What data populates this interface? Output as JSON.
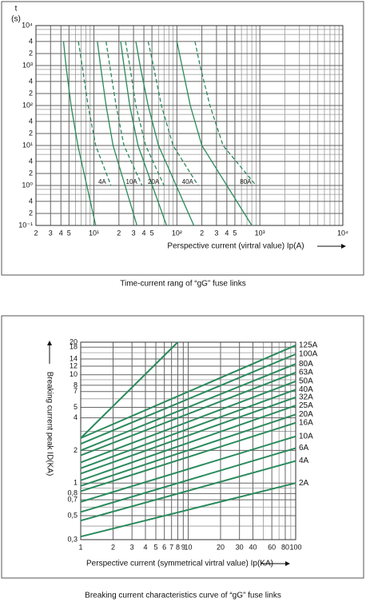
{
  "chart_data": [
    {
      "type": "line",
      "log_x": true,
      "log_y": true,
      "color": "#2a8a5c",
      "grid": true,
      "title": "Time-current rang of “gG” fuse links",
      "x_label": "Perspective current (virtral value) Ip(A)",
      "y_label": "t",
      "y_unit": "(s)",
      "xlim": [
        2,
        10000
      ],
      "ylim": [
        0.1,
        10000
      ],
      "xticks": [
        {
          "value": 2,
          "label": "2"
        },
        3,
        4,
        5,
        {
          "value": 10,
          "label": "10¹"
        },
        {
          "value": 20,
          "label": "2"
        },
        {
          "value": 30,
          "label": "3"
        },
        {
          "value": 40,
          "label": "4"
        },
        {
          "value": 50,
          "label": "5"
        },
        {
          "value": 100,
          "label": "10²"
        },
        {
          "value": 200,
          "label": "2"
        },
        {
          "value": 300,
          "label": "3"
        },
        {
          "value": 400,
          "label": "4"
        },
        {
          "value": 500,
          "label": "5"
        },
        {
          "value": 1000,
          "label": "10³"
        },
        {
          "value": 10000,
          "label": "10⁴"
        }
      ],
      "xminor": [
        6,
        7,
        8,
        9,
        60,
        70,
        80,
        90,
        600,
        700,
        800,
        900,
        2000,
        3000,
        4000,
        5000,
        6000,
        7000,
        8000,
        9000
      ],
      "yticks": [
        {
          "value": 10000,
          "label": "10⁴"
        },
        {
          "value": 4000,
          "label": "4"
        },
        {
          "value": 2000,
          "label": "2"
        },
        {
          "value": 1000,
          "label": "10³"
        },
        {
          "value": 400,
          "label": "4"
        },
        {
          "value": 200,
          "label": "2"
        },
        {
          "value": 100,
          "label": "10²"
        },
        {
          "value": 40,
          "label": "4"
        },
        {
          "value": 20,
          "label": "2"
        },
        {
          "value": 10,
          "label": "10¹"
        },
        4,
        2,
        {
          "value": 1,
          "label": "10⁰"
        },
        {
          "value": 0.4,
          "label": "4"
        },
        {
          "value": 0.2,
          "label": "2"
        },
        {
          "value": 0.1,
          "label": "10⁻¹"
        }
      ],
      "yminor": [
        6000,
        8000,
        600,
        800,
        60,
        80,
        6,
        8,
        0.6,
        0.8
      ],
      "series": [
        {
          "style": "solid",
          "x": [
            4.3,
            4.6,
            5.3,
            6.4,
            10.5
          ],
          "values": [
            4000,
            1000,
            100,
            10,
            0.1
          ]
        },
        {
          "name": "4A",
          "style": "dashed",
          "x": [
            6.5,
            7.2,
            8.5,
            10.5,
            16
          ],
          "values": [
            4000,
            1000,
            100,
            10,
            1
          ]
        },
        {
          "style": "solid",
          "x": [
            11,
            12,
            14,
            17,
            33
          ],
          "values": [
            4000,
            1000,
            100,
            10,
            0.1
          ]
        },
        {
          "name": "10A",
          "style": "dashed",
          "x": [
            14,
            15.5,
            18.5,
            23,
            38
          ],
          "values": [
            4000,
            1000,
            100,
            10,
            1
          ]
        },
        {
          "style": "solid",
          "x": [
            21,
            23,
            27,
            34,
            75
          ],
          "values": [
            4000,
            1000,
            100,
            10,
            0.1
          ]
        },
        {
          "name": "20A",
          "style": "dashed",
          "x": [
            24,
            27,
            32,
            42,
            70
          ],
          "values": [
            4000,
            1000,
            100,
            10,
            1
          ]
        },
        {
          "style": "solid",
          "x": [
            32,
            36,
            45,
            60,
            160
          ],
          "values": [
            4000,
            1000,
            100,
            10,
            0.1
          ]
        },
        {
          "name": "40A",
          "style": "dashed",
          "x": [
            45,
            52,
            65,
            90,
            180
          ],
          "values": [
            4000,
            1000,
            100,
            10,
            1
          ]
        },
        {
          "style": "solid",
          "x": [
            100,
            115,
            145,
            200,
            800
          ],
          "values": [
            4000,
            1000,
            100,
            10,
            0.1
          ]
        },
        {
          "name": "80A",
          "style": "dashed",
          "x": [
            165,
            190,
            250,
            360,
            900
          ],
          "values": [
            4000,
            1000,
            100,
            10,
            1
          ]
        }
      ]
    },
    {
      "type": "line",
      "log_x": true,
      "log_y": true,
      "color": "#2a8a5c",
      "grid": true,
      "title": "Breaking current characteristics curve of “gG” fuse links",
      "x_label": "Perspective current (symmetrical virtral value) Ip(KA)",
      "y_label": "Breaking current peak ID(KA)",
      "xlim": [
        1,
        100
      ],
      "ylim": [
        0.3,
        20
      ],
      "xticks": [
        1,
        2,
        3,
        4,
        5,
        6,
        7,
        8,
        9,
        10,
        20,
        30,
        40,
        60,
        80,
        100
      ],
      "xminor": [
        50,
        70,
        90
      ],
      "yticks": [
        {
          "value": 0.3,
          "label": "0,3"
        },
        {
          "value": 0.5,
          "label": "0,5"
        },
        {
          "value": 0.7,
          "label": "0,7"
        },
        {
          "value": 0.8,
          "label": "0,8"
        },
        1,
        2,
        4,
        5,
        7,
        8,
        10,
        12,
        14,
        18,
        20
      ],
      "yminor": [
        0.4,
        0.6,
        0.9,
        3,
        6,
        9,
        16
      ],
      "series": [
        {
          "x": [
            1,
            8
          ],
          "values": [
            2.6,
            20
          ]
        },
        {
          "name": "125A",
          "x": [
            1,
            100
          ],
          "values": [
            2.6,
            18.7
          ]
        },
        {
          "name": "100A",
          "x": [
            1,
            100
          ],
          "values": [
            2.3,
            15.5
          ]
        },
        {
          "name": "80A",
          "x": [
            1,
            100
          ],
          "values": [
            2.0,
            12.6
          ]
        },
        {
          "name": "63A",
          "x": [
            1,
            100
          ],
          "values": [
            1.8,
            10.5
          ]
        },
        {
          "name": "50A",
          "x": [
            1,
            100
          ],
          "values": [
            1.55,
            8.7
          ]
        },
        {
          "name": "40A",
          "x": [
            1,
            100
          ],
          "values": [
            1.37,
            7.3
          ]
        },
        {
          "name": "32A",
          "x": [
            1,
            100
          ],
          "values": [
            1.22,
            6.2
          ]
        },
        {
          "name": "25A",
          "x": [
            1,
            100
          ],
          "values": [
            1.06,
            5.2
          ]
        },
        {
          "name": "20A",
          "x": [
            1,
            100
          ],
          "values": [
            0.94,
            4.3
          ]
        },
        {
          "name": "16A",
          "x": [
            1,
            100
          ],
          "values": [
            0.84,
            3.6
          ]
        },
        {
          "name": "10A",
          "x": [
            1,
            100
          ],
          "values": [
            0.67,
            2.7
          ]
        },
        {
          "name": "6A",
          "x": [
            1,
            100
          ],
          "values": [
            0.54,
            2.1
          ]
        },
        {
          "name": "4A",
          "x": [
            1,
            100
          ],
          "values": [
            0.45,
            1.6
          ]
        },
        {
          "name": "2A",
          "x": [
            1,
            100
          ],
          "values": [
            0.32,
            1.0
          ]
        }
      ]
    }
  ]
}
